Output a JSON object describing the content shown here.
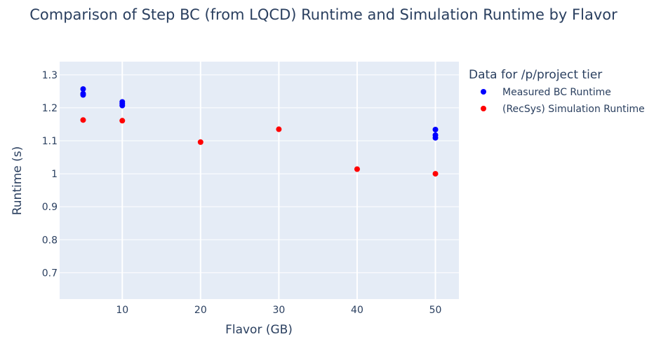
{
  "chart_data": {
    "type": "scatter",
    "title": "Comparison of Step BC (from LQCD) Runtime and Simulation Runtime by Flavor",
    "xlabel": "Flavor (GB)",
    "ylabel": "Runtime (s)",
    "xlim": [
      2,
      53
    ],
    "ylim": [
      0.62,
      1.34
    ],
    "xticks": [
      10,
      20,
      30,
      40,
      50
    ],
    "xtick_labels": [
      "10",
      "20",
      "30",
      "40",
      "50"
    ],
    "yticks": [
      0.7,
      0.8,
      0.9,
      1.0,
      1.1,
      1.2,
      1.3
    ],
    "ytick_labels": [
      "0.7",
      "0.8",
      "0.9",
      "1",
      "1.1",
      "1.2",
      "1.3"
    ],
    "legend_title": "Data for /p/project tier",
    "legend_position": "right",
    "series": [
      {
        "name": "Measured BC Runtime",
        "color": "#0000ff",
        "x": [
          5,
          5,
          5,
          10,
          10,
          10,
          50,
          50,
          50
        ],
        "y": [
          1.257,
          1.243,
          1.239,
          1.218,
          1.212,
          1.207,
          1.134,
          1.117,
          1.109
        ]
      },
      {
        "name": "(RecSys) Simulation Runtime",
        "color": "#ff0000",
        "x": [
          5,
          10,
          20,
          30,
          40,
          50
        ],
        "y": [
          1.163,
          1.161,
          1.096,
          1.135,
          1.014,
          1.0
        ]
      }
    ]
  }
}
